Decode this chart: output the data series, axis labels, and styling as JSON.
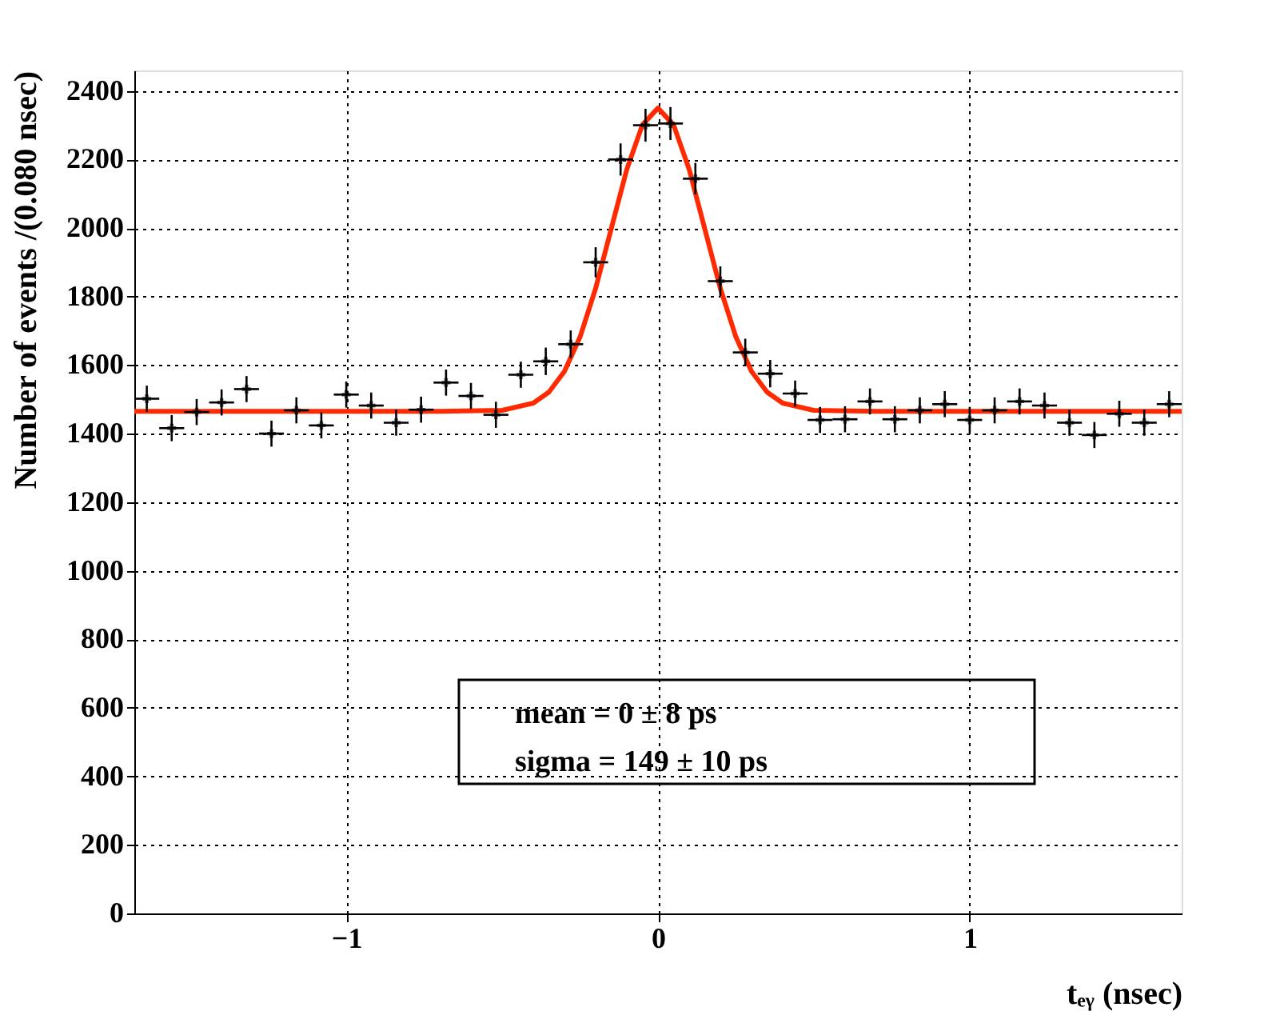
{
  "chart_data": {
    "type": "scatter",
    "xlabel": "tₑᵧ (nsec)",
    "ylabel": "Number of events /(0.080 nsec)",
    "xlim": [
      -1.68,
      1.68
    ],
    "xticks": [
      -1,
      0,
      1
    ],
    "ylim": [
      0,
      2460
    ],
    "yticks": [
      0,
      200,
      400,
      600,
      800,
      1000,
      1200,
      1400,
      1600,
      1800,
      2000,
      2200,
      2400
    ],
    "grid": true,
    "series": [
      {
        "marker": "cross",
        "color": "#000000",
        "x": [
          -1.64,
          -1.56,
          -1.48,
          -1.4,
          -1.32,
          -1.24,
          -1.16,
          -1.08,
          -1.0,
          -0.92,
          -0.84,
          -0.76,
          -0.68,
          -0.6,
          -0.52,
          -0.44,
          -0.36,
          -0.28,
          -0.2,
          -0.12,
          -0.04,
          0.04,
          0.12,
          0.2,
          0.28,
          0.36,
          0.44,
          0.52,
          0.6,
          0.68,
          0.76,
          0.84,
          0.92,
          1.0,
          1.08,
          1.16,
          1.24,
          1.32,
          1.4,
          1.48,
          1.56,
          1.64
        ],
        "values": [
          1502,
          1416,
          1463,
          1491,
          1530,
          1400,
          1468,
          1424,
          1514,
          1482,
          1432,
          1470,
          1549,
          1510,
          1455,
          1572,
          1611,
          1661,
          1900,
          2200,
          2300,
          2305,
          2144,
          1845,
          1637,
          1575,
          1517,
          1440,
          1442,
          1494,
          1442,
          1468,
          1486,
          1440,
          1468,
          1494,
          1482,
          1432,
          1396,
          1458,
          1432,
          1486
        ],
        "errors": [
          38,
          38,
          38,
          38,
          38,
          38,
          38,
          38,
          38,
          38,
          38,
          38,
          38,
          38,
          38,
          38,
          40,
          40,
          44,
          47,
          48,
          48,
          46,
          43,
          40,
          40,
          38,
          38,
          38,
          38,
          38,
          38,
          38,
          38,
          38,
          38,
          38,
          38,
          38,
          38,
          38,
          38
        ],
        "xerrors": [
          0.04,
          0.04,
          0.04,
          0.04,
          0.04,
          0.04,
          0.04,
          0.04,
          0.04,
          0.04,
          0.04,
          0.04,
          0.04,
          0.04,
          0.04,
          0.04,
          0.04,
          0.04,
          0.04,
          0.04,
          0.04,
          0.04,
          0.04,
          0.04,
          0.04,
          0.04,
          0.04,
          0.04,
          0.04,
          0.04,
          0.04,
          0.04,
          0.04,
          0.04,
          0.04,
          0.04,
          0.04,
          0.04,
          0.04,
          0.04,
          0.04,
          0.04
        ]
      },
      {
        "type": "line",
        "color": "#ff2a00",
        "line_style": "solid",
        "x": [
          -1.68,
          -1.0,
          -0.7,
          -0.5,
          -0.4,
          -0.35,
          -0.3,
          -0.25,
          -0.2,
          -0.15,
          -0.1,
          -0.05,
          0,
          0.05,
          0.1,
          0.15,
          0.2,
          0.25,
          0.3,
          0.35,
          0.4,
          0.5,
          0.7,
          1.0,
          1.68
        ],
        "values": [
          1465,
          1465,
          1465,
          1468,
          1489,
          1521,
          1582,
          1682,
          1824,
          1998,
          2171,
          2301,
          2350,
          2301,
          2171,
          1998,
          1824,
          1682,
          1582,
          1521,
          1489,
          1468,
          1465,
          1465,
          1465
        ]
      }
    ],
    "annotations": [
      "mean =     0 ± 8 ps",
      "sigma = 149 ± 10 ps"
    ]
  }
}
